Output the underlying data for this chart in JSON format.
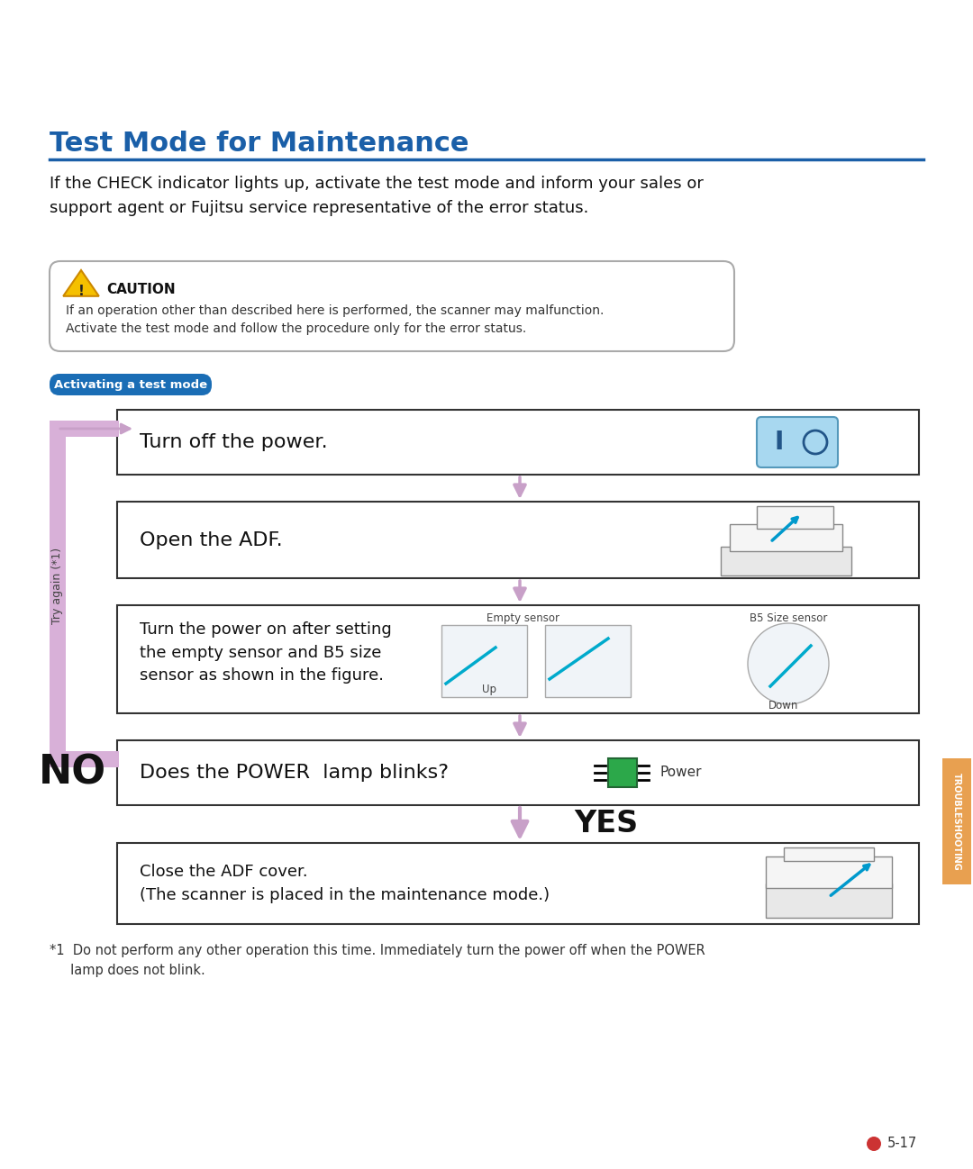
{
  "title": "Test Mode for Maintenance",
  "title_color": "#1a5fa8",
  "title_fontsize": 22,
  "hr_color": "#1a5fa8",
  "intro_text": "If the CHECK indicator lights up, activate the test mode and inform your sales or\nsupport agent or Fujitsu service representative of the error status.",
  "caution_title": "CAUTION",
  "caution_text": "If an operation other than described here is performed, the scanner may malfunction.\nActivate the test mode and follow the procedure only for the error status.",
  "section_label": "Activating a test mode",
  "section_label_bg": "#1a6db5",
  "steps": [
    "Turn off the power.",
    "Open the ADF.",
    "Turn the power on after setting\nthe empty sensor and B5 size\nsensor as shown in the figure.",
    "Does the POWER  lamp blinks?"
  ],
  "yes_label": "YES",
  "no_label": "NO",
  "close_adf_text": "Close the ADF cover.\n(The scanner is placed in the maintenance mode.)",
  "footnote": "*1  Do not perform any other operation this time. Immediately turn the power off when the POWER\n     lamp does not blink.",
  "page_num": "5-17",
  "try_again_label": "Try again (*1)",
  "arrow_color": "#c8a0c8",
  "side_tab_color": "#e8a050",
  "bg_color": "#ffffff",
  "box_border_color": "#333333",
  "power_green_color": "#2ca84a",
  "empty_sensor_label": "Empty sensor",
  "b5_sensor_label": "B5 Size sensor",
  "up_label": "Up",
  "down_label": "Down",
  "power_label": "Power"
}
